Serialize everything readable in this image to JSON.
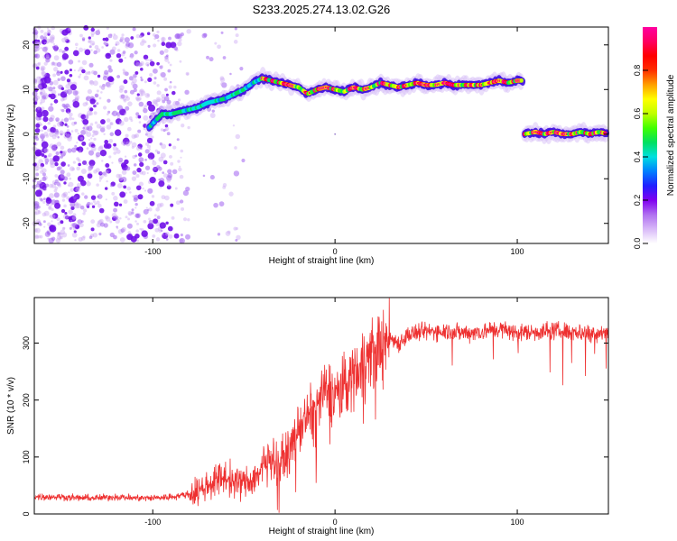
{
  "title": "S233.2025.274.13.02.G26",
  "chart_data": [
    {
      "type": "heatmap",
      "xlabel": "Height of straight line (km)",
      "ylabel": "Frequency (Hz)",
      "xlim": [
        -165,
        150
      ],
      "ylim": [
        -24.5,
        24
      ],
      "xticks": [
        -100,
        0,
        100
      ],
      "xtick_labels": [
        "-100",
        "0",
        "100"
      ],
      "yticks": [
        -20,
        -10,
        0,
        10,
        20
      ],
      "ytick_labels": [
        "-20",
        "-10",
        "0",
        "10",
        "20"
      ],
      "colorbar": {
        "label": "Normalized spectral amplitude",
        "range": [
          0.0,
          1.0
        ],
        "ticks": [
          0.0,
          0.2,
          0.4,
          0.6,
          0.8
        ],
        "tick_labels": [
          "0.0",
          "0.2",
          "0.4",
          "0.6",
          "0.8"
        ],
        "colors": [
          "#ffffff",
          "#d8b8f8",
          "#b070f0",
          "#8000f0",
          "#2020ff",
          "#0080ff",
          "#00e0e0",
          "#00e060",
          "#40ff00",
          "#c0ff00",
          "#ffff00",
          "#ffa000",
          "#ff3000",
          "#ff0000",
          "#ff0060",
          "#ff00a0"
        ]
      },
      "trace_upper": {
        "x": [
          -102,
          -95,
          -90,
          -85,
          -80,
          -75,
          -70,
          -65,
          -60,
          -55,
          -50,
          -45,
          -40,
          -35,
          -30,
          -25,
          -20,
          -15,
          -10,
          -5,
          0,
          5,
          10,
          15,
          20,
          25,
          30,
          35,
          40,
          45,
          50,
          55,
          60,
          65,
          70,
          75,
          80,
          85,
          90,
          95,
          100,
          103
        ],
        "y": [
          1.5,
          4.5,
          4.5,
          5.0,
          5.5,
          6.0,
          7.0,
          7.5,
          8.0,
          9.0,
          10.0,
          11.5,
          12.5,
          12.0,
          11.5,
          11.0,
          10.5,
          9.0,
          10.0,
          10.5,
          10.0,
          9.5,
          10.5,
          10.0,
          10.5,
          11.5,
          11.0,
          10.5,
          11.0,
          11.5,
          11.0,
          11.0,
          11.5,
          11.0,
          11.0,
          11.0,
          11.0,
          11.5,
          12.0,
          11.5,
          12.0,
          12.0
        ]
      },
      "trace_lower": {
        "x": [
          104,
          110,
          115,
          120,
          125,
          130,
          135,
          140,
          145,
          150
        ],
        "y": [
          0.0,
          0.5,
          0.0,
          0.5,
          0.0,
          0.0,
          0.5,
          0.0,
          0.5,
          0.0
        ]
      }
    },
    {
      "type": "line",
      "xlabel": "Height of straight line (km)",
      "ylabel": "SNR (10 * v/v)",
      "xlim": [
        -165,
        150
      ],
      "ylim": [
        0,
        380
      ],
      "xticks": [
        -100,
        0,
        100
      ],
      "xtick_labels": [
        "-100",
        "0",
        "100"
      ],
      "yticks": [
        0,
        100,
        200,
        300
      ],
      "ytick_labels": [
        "0",
        "100",
        "200",
        "300"
      ],
      "series": [
        {
          "name": "SNR",
          "color": "#ee3030",
          "x": [
            -165,
            -150,
            -140,
            -130,
            -120,
            -110,
            -100,
            -90,
            -80,
            -75,
            -70,
            -65,
            -60,
            -55,
            -50,
            -45,
            -40,
            -35,
            -30,
            -25,
            -20,
            -15,
            -10,
            -5,
            0,
            5,
            10,
            15,
            20,
            25,
            30,
            35,
            40,
            50,
            60,
            70,
            80,
            90,
            100,
            110,
            120,
            130,
            140,
            150
          ],
          "y": [
            30,
            30,
            28,
            28,
            30,
            28,
            28,
            30,
            35,
            40,
            50,
            60,
            65,
            55,
            55,
            60,
            80,
            100,
            90,
            110,
            150,
            170,
            190,
            215,
            210,
            225,
            245,
            265,
            285,
            295,
            310,
            300,
            315,
            320,
            322,
            318,
            320,
            325,
            318,
            320,
            322,
            320,
            318,
            320
          ]
        }
      ]
    }
  ]
}
